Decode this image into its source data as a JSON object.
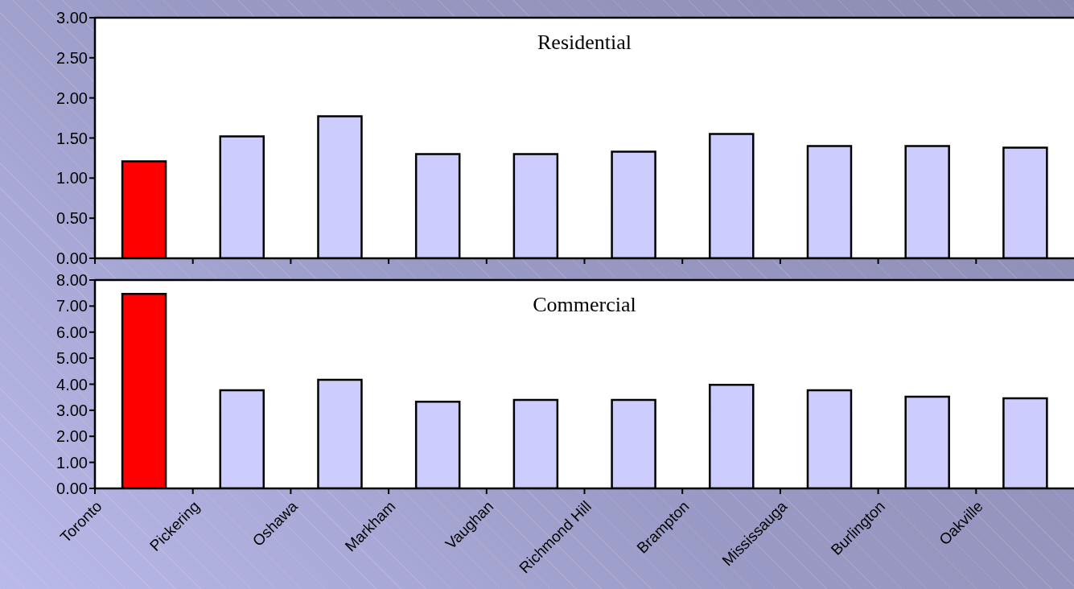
{
  "chart_data": [
    {
      "type": "bar",
      "categories": [
        null,
        null,
        null,
        null,
        null,
        null,
        null,
        null,
        null,
        null
      ],
      "values": [
        1.21,
        1.52,
        1.77,
        1.3,
        1.3,
        1.33,
        1.55,
        1.4,
        1.4,
        1.38
      ],
      "colors": [
        "#ff0000",
        "#ccccff",
        "#ccccff",
        "#ccccff",
        "#ccccff",
        "#ccccff",
        "#ccccff",
        "#ccccff",
        "#ccccff",
        "#ccccff"
      ],
      "ylim": [
        0,
        3
      ],
      "yticks": [
        {
          "value": 0,
          "label": "0.00"
        },
        {
          "value": 0.5,
          "label": "0.50"
        },
        {
          "value": 1,
          "label": "1.00"
        },
        {
          "value": 1.5,
          "label": "1.50"
        },
        {
          "value": 2,
          "label": "2.00"
        },
        {
          "value": 2.5,
          "label": "2.50"
        },
        {
          "value": 3,
          "label": "3.00"
        }
      ],
      "annotations": [
        "Residential"
      ]
    },
    {
      "type": "bar",
      "categories": [
        "Toronto",
        "Pickering",
        "Oshawa",
        "Markham",
        "Vaughan",
        "Richmond Hill",
        "Brampton",
        "Mississauga",
        "Burlington",
        "Oakville"
      ],
      "values": [
        7.47,
        3.77,
        4.17,
        3.33,
        3.4,
        3.4,
        3.98,
        3.77,
        3.52,
        3.46
      ],
      "colors": [
        "#ff0000",
        "#ccccff",
        "#ccccff",
        "#ccccff",
        "#ccccff",
        "#ccccff",
        "#ccccff",
        "#ccccff",
        "#ccccff",
        "#ccccff"
      ],
      "ylim": [
        0,
        8
      ],
      "yticks": [
        {
          "value": 0,
          "label": "0.00"
        },
        {
          "value": 1,
          "label": "1.00"
        },
        {
          "value": 2,
          "label": "2.00"
        },
        {
          "value": 3,
          "label": "3.00"
        },
        {
          "value": 4,
          "label": "4.00"
        },
        {
          "value": 5,
          "label": "5.00"
        },
        {
          "value": 6,
          "label": "6.00"
        },
        {
          "value": 7,
          "label": "7.00"
        },
        {
          "value": 8,
          "label": "8.00"
        }
      ],
      "annotations": [
        "Commercial"
      ]
    }
  ]
}
